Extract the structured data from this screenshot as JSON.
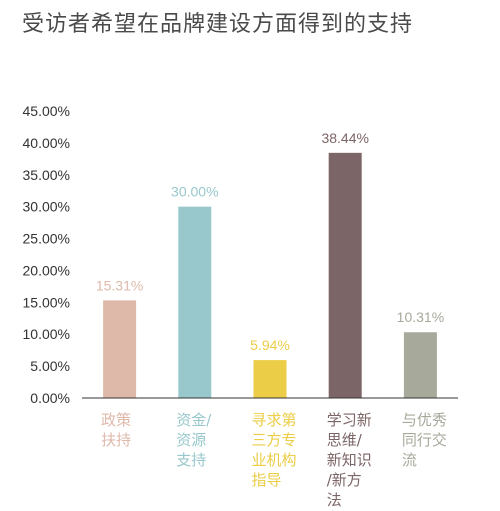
{
  "chart_data": {
    "type": "bar",
    "title": "受访者希望在品牌建设方面得到的支持",
    "categories": [
      [
        "政策",
        "扶持"
      ],
      [
        "资金/",
        "资源",
        "支持"
      ],
      [
        "寻求第",
        "三方专",
        "业机构",
        "指导"
      ],
      [
        "学习新",
        "思维/",
        "新知识",
        "/新方",
        "法"
      ],
      [
        "与优秀",
        "同行交",
        "流"
      ]
    ],
    "values": [
      15.31,
      30.0,
      5.94,
      38.44,
      10.31
    ],
    "value_labels": [
      "15.31%",
      "30.00%",
      "5.94%",
      "38.44%",
      "10.31%"
    ],
    "colors": [
      "#deb9aa",
      "#98c8cc",
      "#ebcd48",
      "#7c6566",
      "#a7a99b"
    ],
    "ylim": [
      0,
      45
    ],
    "yticks": [
      "0.00%",
      "5.00%",
      "10.00%",
      "15.00%",
      "20.00%",
      "25.00%",
      "30.00%",
      "35.00%",
      "40.00%",
      "45.00%"
    ],
    "grid": false,
    "axis_color": "#333333"
  }
}
